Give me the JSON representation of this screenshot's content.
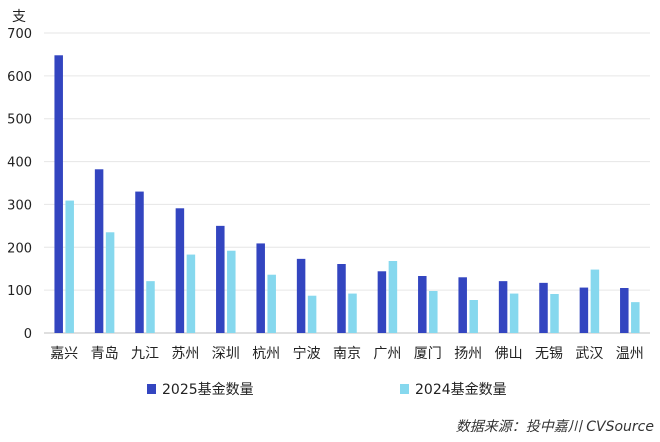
{
  "chart_data": {
    "type": "bar",
    "unit_label": "支",
    "categories": [
      "嘉兴",
      "青岛",
      "九江",
      "苏州",
      "深圳",
      "杭州",
      "宁波",
      "南京",
      "广州",
      "厦门",
      "扬州",
      "佛山",
      "无锡",
      "武汉",
      "温州"
    ],
    "series": [
      {
        "name": "2025基金数量",
        "color": "#3345c0",
        "values": [
          648,
          382,
          330,
          291,
          250,
          209,
          173,
          161,
          144,
          133,
          130,
          121,
          117,
          106,
          105
        ]
      },
      {
        "name": "2024基金数量",
        "color": "#86d8ee",
        "values": [
          309,
          235,
          121,
          183,
          192,
          136,
          87,
          92,
          168,
          98,
          77,
          92,
          91,
          148,
          72
        ]
      }
    ],
    "yticks": [
      "0",
      "100",
      "200",
      "300",
      "400",
      "500",
      "600",
      "700"
    ],
    "ylim": [
      0,
      700
    ],
    "grid": true,
    "legend_position": "bottom",
    "source_note": "数据来源：投中嘉川 CVSource"
  }
}
